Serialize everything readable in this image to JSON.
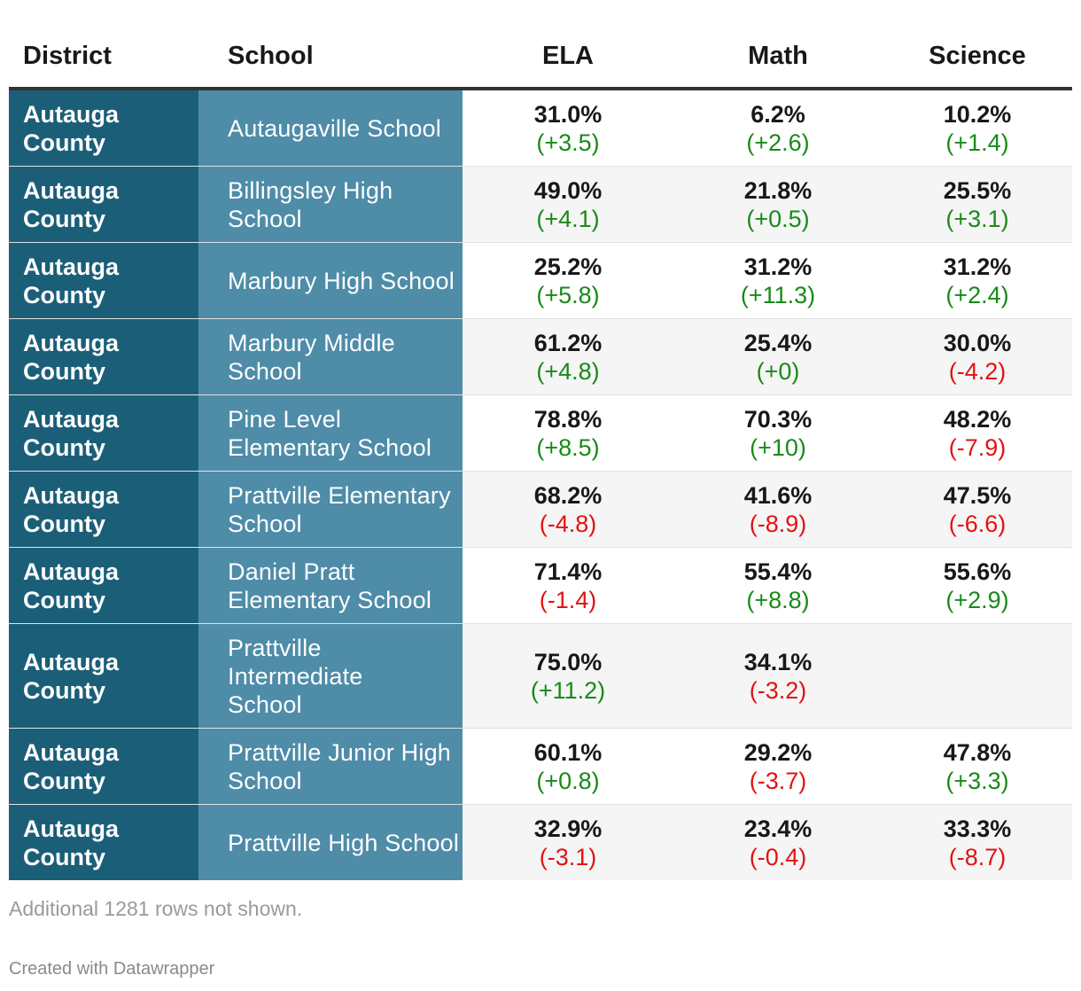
{
  "chart_data": {
    "type": "table",
    "columns": [
      "District",
      "School",
      "ELA",
      "Math",
      "Science"
    ],
    "rows": [
      {
        "district": "Autauga County",
        "school": "Autaugaville School",
        "ela": {
          "value": "31.0%",
          "change": "(+3.5)",
          "dir": "pos"
        },
        "math": {
          "value": "6.2%",
          "change": "(+2.6)",
          "dir": "pos"
        },
        "science": {
          "value": "10.2%",
          "change": "(+1.4)",
          "dir": "pos"
        }
      },
      {
        "district": "Autauga County",
        "school": "Billingsley High School",
        "ela": {
          "value": "49.0%",
          "change": "(+4.1)",
          "dir": "pos"
        },
        "math": {
          "value": "21.8%",
          "change": "(+0.5)",
          "dir": "pos"
        },
        "science": {
          "value": "25.5%",
          "change": "(+3.1)",
          "dir": "pos"
        }
      },
      {
        "district": "Autauga County",
        "school": "Marbury High School",
        "ela": {
          "value": "25.2%",
          "change": "(+5.8)",
          "dir": "pos"
        },
        "math": {
          "value": "31.2%",
          "change": "(+11.3)",
          "dir": "pos"
        },
        "science": {
          "value": "31.2%",
          "change": "(+2.4)",
          "dir": "pos"
        }
      },
      {
        "district": "Autauga County",
        "school": "Marbury Middle School",
        "ela": {
          "value": "61.2%",
          "change": "(+4.8)",
          "dir": "pos"
        },
        "math": {
          "value": "25.4%",
          "change": "(+0)",
          "dir": "pos"
        },
        "science": {
          "value": "30.0%",
          "change": "(-4.2)",
          "dir": "neg"
        }
      },
      {
        "district": "Autauga County",
        "school": "Pine Level Elementary School",
        "ela": {
          "value": "78.8%",
          "change": "(+8.5)",
          "dir": "pos"
        },
        "math": {
          "value": "70.3%",
          "change": "(+10)",
          "dir": "pos"
        },
        "science": {
          "value": "48.2%",
          "change": "(-7.9)",
          "dir": "neg"
        }
      },
      {
        "district": "Autauga County",
        "school": "Prattville Elementary School",
        "ela": {
          "value": "68.2%",
          "change": "(-4.8)",
          "dir": "neg"
        },
        "math": {
          "value": "41.6%",
          "change": "(-8.9)",
          "dir": "neg"
        },
        "science": {
          "value": "47.5%",
          "change": "(-6.6)",
          "dir": "neg"
        }
      },
      {
        "district": "Autauga County",
        "school": "Daniel Pratt Elementary School",
        "ela": {
          "value": "71.4%",
          "change": "(-1.4)",
          "dir": "neg"
        },
        "math": {
          "value": "55.4%",
          "change": "(+8.8)",
          "dir": "pos"
        },
        "science": {
          "value": "55.6%",
          "change": "(+2.9)",
          "dir": "pos"
        }
      },
      {
        "district": "Autauga County",
        "school": "Prattville Intermediate School",
        "ela": {
          "value": "75.0%",
          "change": "(+11.2)",
          "dir": "pos"
        },
        "math": {
          "value": "34.1%",
          "change": "(-3.2)",
          "dir": "neg"
        },
        "science": null
      },
      {
        "district": "Autauga County",
        "school": "Prattville Junior High School",
        "ela": {
          "value": "60.1%",
          "change": "(+0.8)",
          "dir": "pos"
        },
        "math": {
          "value": "29.2%",
          "change": "(-3.7)",
          "dir": "neg"
        },
        "science": {
          "value": "47.8%",
          "change": "(+3.3)",
          "dir": "pos"
        }
      },
      {
        "district": "Autauga County",
        "school": "Prattville High School",
        "ela": {
          "value": "32.9%",
          "change": "(-3.1)",
          "dir": "neg"
        },
        "math": {
          "value": "23.4%",
          "change": "(-0.4)",
          "dir": "neg"
        },
        "science": {
          "value": "33.3%",
          "change": "(-8.7)",
          "dir": "neg"
        }
      }
    ],
    "footnote": "Additional 1281 rows not shown.",
    "credit": "Created with Datawrapper"
  },
  "colors": {
    "district_bg": "#1b5e78",
    "school_bg": "#4e8ca8",
    "positive": "#188a18",
    "negative": "#e31212"
  }
}
